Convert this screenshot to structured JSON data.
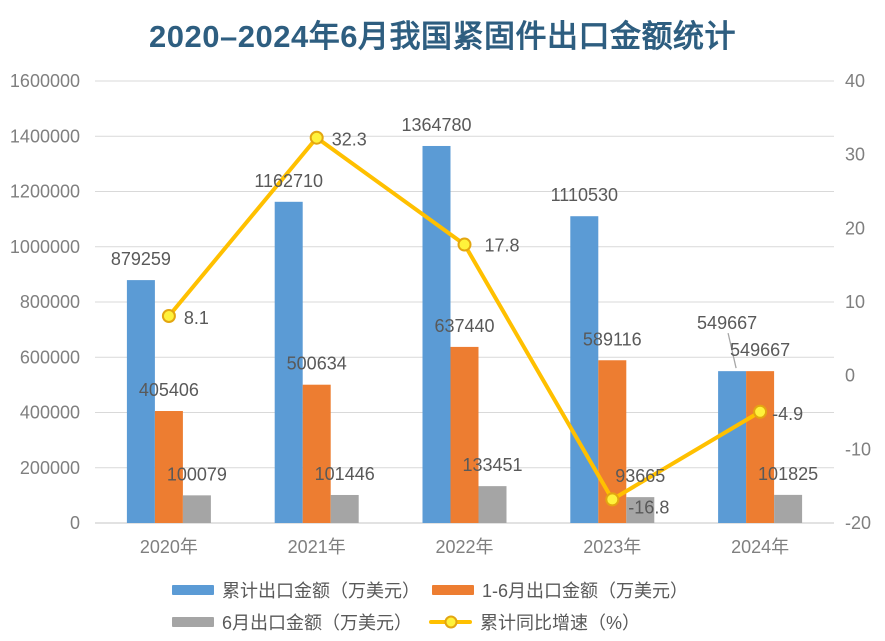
{
  "colors": {
    "title": "#2E5E80",
    "grid": "#D9D9D9",
    "axis_line": "#C6C6C6",
    "tick_label": "#7F7F7F",
    "data_label": "#595959",
    "legend_label": "#595959",
    "blue": "#5B9BD5",
    "orange": "#ED7D31",
    "gray": "#A5A5A5",
    "gold": "#FFC000",
    "marker_fill": "#FFF23B",
    "marker_stroke": "#E3A611",
    "leader_line": "#A6A6A6",
    "background": "#FFFFFF"
  },
  "chart_data": {
    "type": "combo_bar_line",
    "title": "2020–2024年6月我国紧固件出口金额统计",
    "categories": [
      "2020年",
      "2021年",
      "2022年",
      "2023年",
      "2024年"
    ],
    "series": [
      {
        "key": "cumulative-export",
        "name": "累计出口金额（万美元）",
        "type": "bar",
        "axis": "left",
        "color": "#5B9BD5",
        "values": [
          879259,
          1162710,
          1364780,
          1110530,
          549667
        ]
      },
      {
        "key": "jan-jun-export",
        "name": "1-6月出口金额（万美元）",
        "type": "bar",
        "axis": "left",
        "color": "#ED7D31",
        "values": [
          405406,
          500634,
          637440,
          589116,
          549667
        ]
      },
      {
        "key": "june-export",
        "name": "6月出口金额（万美元）",
        "type": "bar",
        "axis": "left",
        "color": "#A5A5A5",
        "values": [
          100079,
          101446,
          133451,
          93665,
          101825
        ]
      },
      {
        "key": "yoy-growth",
        "name": "累计同比增速（%）",
        "type": "line",
        "axis": "right",
        "color": "#FFC000",
        "values": [
          8.1,
          32.3,
          17.8,
          -16.8,
          -4.9
        ]
      }
    ],
    "left_axis": {
      "min": 0,
      "max": 1600000,
      "step": 200000,
      "tick_labels": [
        "0",
        "200000",
        "400000",
        "600000",
        "800000",
        "1000000",
        "1200000",
        "1400000",
        "1600000"
      ]
    },
    "right_axis": {
      "min": -20,
      "max": 40,
      "step": 10,
      "tick_labels": [
        "-20",
        "-10",
        "0",
        "10",
        "20",
        "30",
        "40"
      ]
    },
    "grid": true,
    "data_labels": true,
    "legend_position": "bottom"
  }
}
